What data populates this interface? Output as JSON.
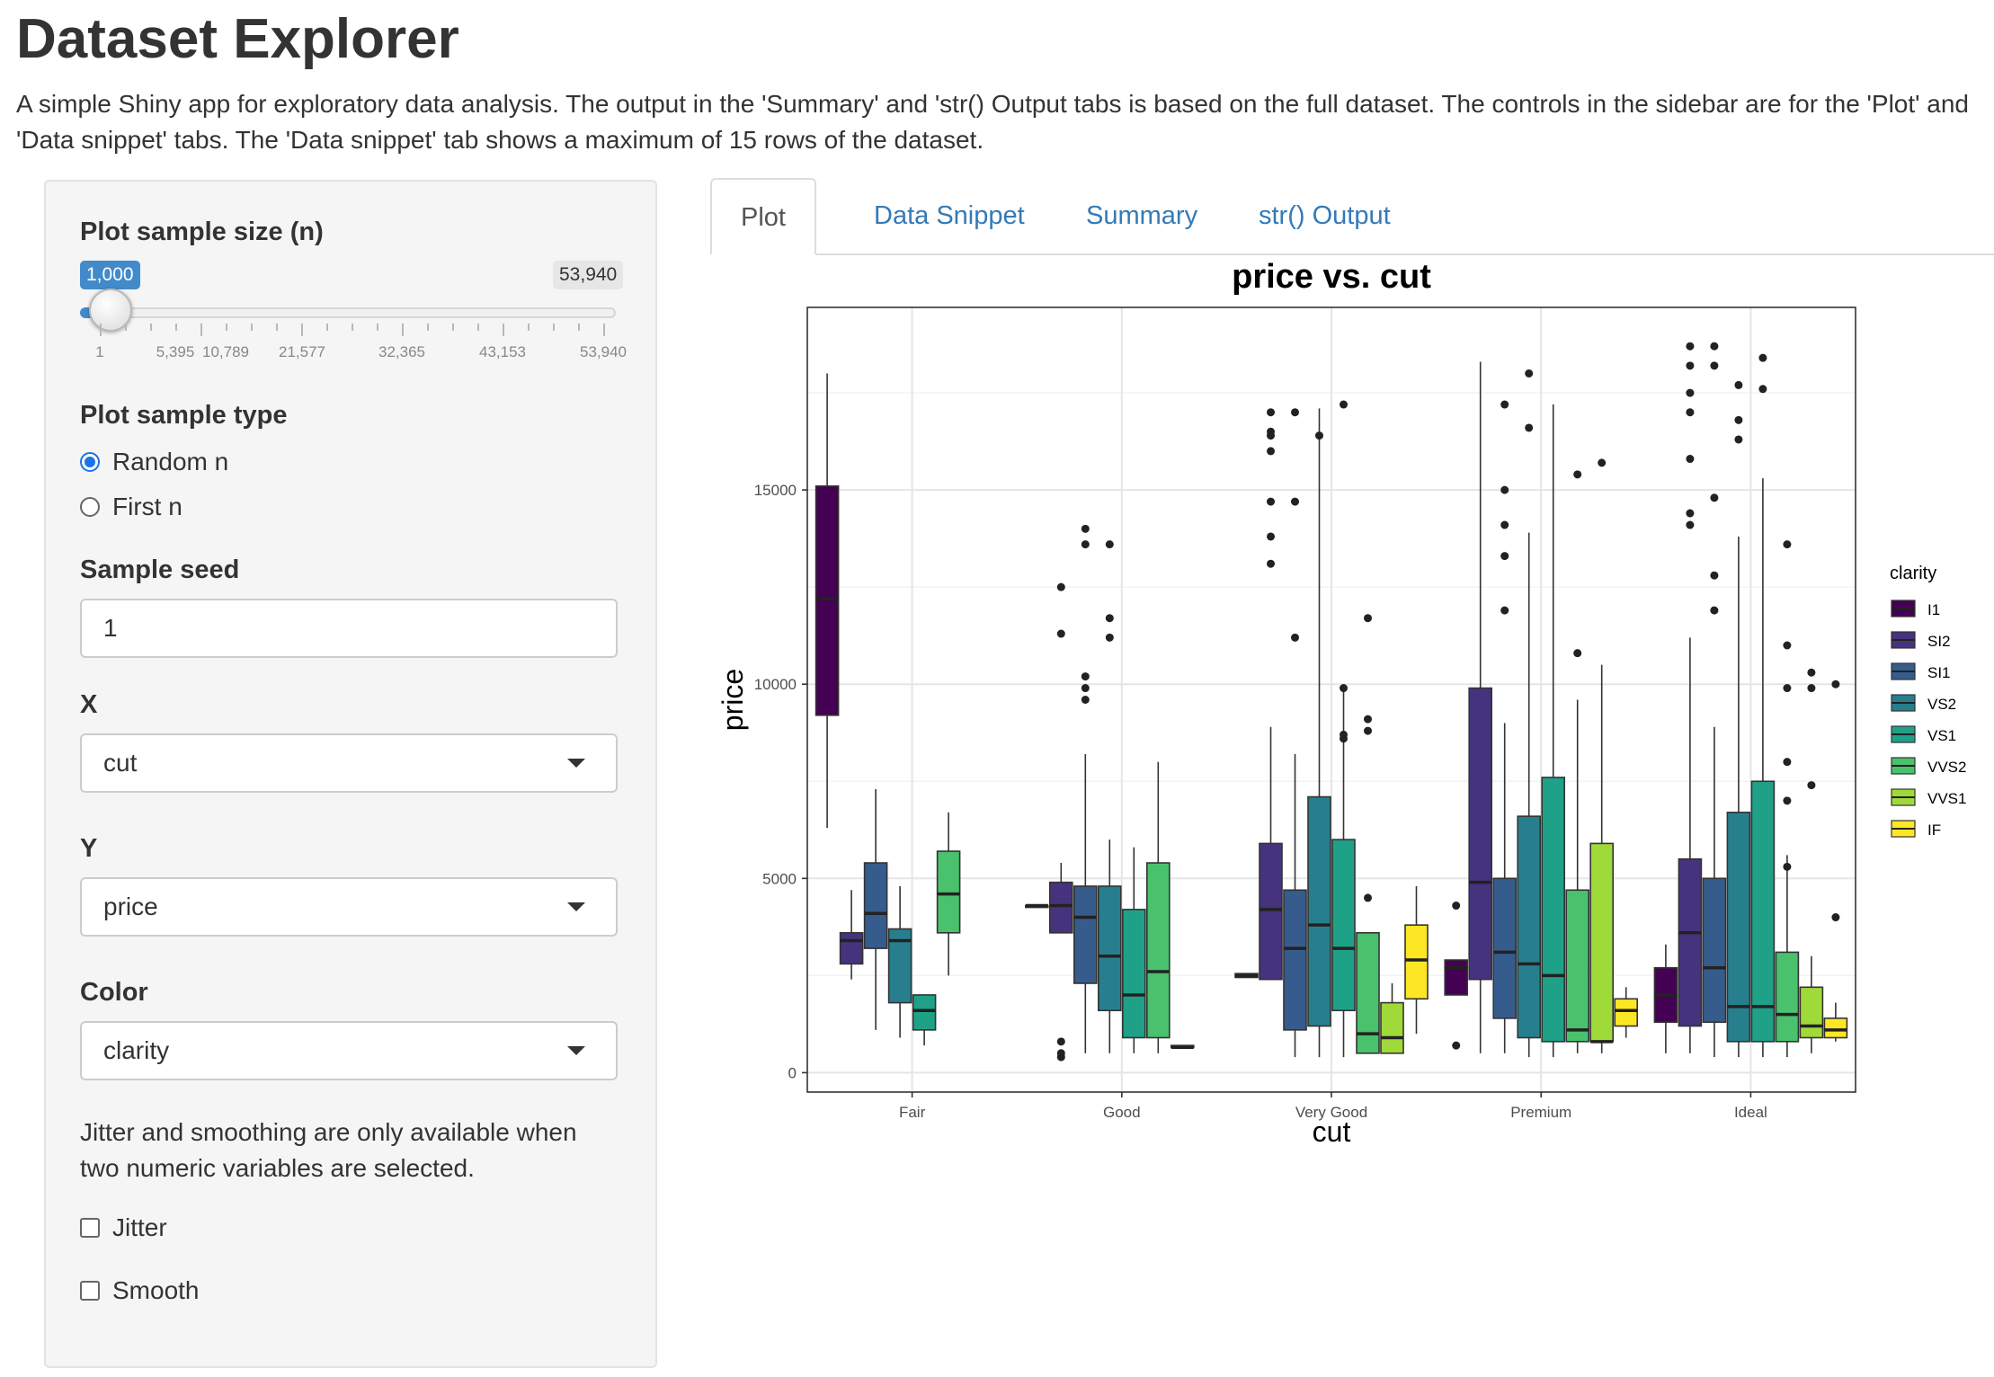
{
  "app": {
    "title": "Dataset Explorer",
    "description": "A simple Shiny app for exploratory data analysis. The output in the 'Summary' and 'str() Output tabs is based on the full dataset. The controls in the sidebar are for the 'Plot' and 'Data snippet' tabs. The 'Data snippet' tab shows a maximum of 15 rows of the dataset."
  },
  "sidebar": {
    "sample_size": {
      "label": "Plot sample size (n)",
      "value": "1,000",
      "max_label": "53,940",
      "ticks": [
        "1",
        "5,395",
        "10,789",
        "21,577",
        "32,365",
        "43,153",
        "53,940"
      ]
    },
    "sample_type": {
      "label": "Plot sample type",
      "options": [
        "Random n",
        "First n"
      ],
      "selected": "Random n"
    },
    "seed": {
      "label": "Sample seed",
      "value": "1"
    },
    "x": {
      "label": "X",
      "value": "cut"
    },
    "y": {
      "label": "Y",
      "value": "price"
    },
    "color": {
      "label": "Color",
      "value": "clarity"
    },
    "help_text": "Jitter and smoothing are only available when two numeric variables are selected.",
    "jitter": {
      "label": "Jitter",
      "checked": false
    },
    "smooth": {
      "label": "Smooth",
      "checked": false
    }
  },
  "tabs": [
    {
      "label": "Plot",
      "active": true
    },
    {
      "label": "Data Snippet",
      "active": false
    },
    {
      "label": "Summary",
      "active": false
    },
    {
      "label": "str() Output",
      "active": false
    }
  ],
  "chart_data": {
    "type": "boxplot",
    "title": "price vs. cut",
    "xlabel": "cut",
    "ylabel": "price",
    "ylim": [
      -500,
      19700
    ],
    "yticks": [
      0,
      5000,
      10000,
      15000
    ],
    "categories": [
      "Fair",
      "Good",
      "Very Good",
      "Premium",
      "Ideal"
    ],
    "legend": {
      "title": "clarity",
      "position": "right"
    },
    "grid": true,
    "series": [
      {
        "name": "I1",
        "color": "#440154",
        "boxes": [
          {
            "cat": "Fair",
            "min": 6300,
            "q1": 9200,
            "median": 12200,
            "q3": 15100,
            "max": 18000,
            "outliers": []
          },
          {
            "cat": "Good",
            "min": 4300,
            "q1": 4300,
            "median": 4300,
            "q3": 4300,
            "max": 4300,
            "outliers": []
          },
          {
            "cat": "Very Good",
            "min": 2450,
            "q1": 2450,
            "median": 2500,
            "q3": 2550,
            "max": 2550,
            "outliers": []
          },
          {
            "cat": "Premium",
            "min": 2000,
            "q1": 2000,
            "median": 2700,
            "q3": 2900,
            "max": 2900,
            "outliers": [
              700,
              4300
            ]
          },
          {
            "cat": "Ideal",
            "min": 500,
            "q1": 1300,
            "median": 2000,
            "q3": 2700,
            "max": 3300,
            "outliers": []
          }
        ]
      },
      {
        "name": "SI2",
        "color": "#46337e",
        "boxes": [
          {
            "cat": "Fair",
            "min": 2400,
            "q1": 2800,
            "median": 3400,
            "q3": 3600,
            "max": 4700,
            "outliers": []
          },
          {
            "cat": "Good",
            "min": 3600,
            "q1": 3600,
            "median": 4300,
            "q3": 4900,
            "max": 5400,
            "outliers": [
              12500,
              11300,
              800,
              400,
              500
            ]
          },
          {
            "cat": "Very Good",
            "min": 2400,
            "q1": 2400,
            "median": 4200,
            "q3": 5900,
            "max": 8900,
            "outliers": [
              16000,
              16500,
              17000,
              14700,
              13800,
              13100,
              16400
            ]
          },
          {
            "cat": "Premium",
            "min": 500,
            "q1": 2400,
            "median": 4900,
            "q3": 9900,
            "max": 18300,
            "outliers": []
          },
          {
            "cat": "Ideal",
            "min": 500,
            "q1": 1200,
            "median": 3600,
            "q3": 5500,
            "max": 11200,
            "outliers": [
              18700,
              18200,
              17500,
              17000,
              15800,
              14400,
              14100
            ]
          }
        ]
      },
      {
        "name": "SI1",
        "color": "#365c8d",
        "boxes": [
          {
            "cat": "Fair",
            "min": 1100,
            "q1": 3200,
            "median": 4100,
            "q3": 5400,
            "max": 7300,
            "outliers": []
          },
          {
            "cat": "Good",
            "min": 500,
            "q1": 2300,
            "median": 4000,
            "q3": 4800,
            "max": 8200,
            "outliers": [
              14000,
              13600,
              10200,
              9900,
              9600
            ]
          },
          {
            "cat": "Very Good",
            "min": 400,
            "q1": 1100,
            "median": 3200,
            "q3": 4700,
            "max": 8200,
            "outliers": [
              17000,
              14700,
              11200
            ]
          },
          {
            "cat": "Premium",
            "min": 500,
            "q1": 1400,
            "median": 3100,
            "q3": 5000,
            "max": 9000,
            "outliers": [
              17200,
              15000,
              14100,
              13300,
              11900
            ]
          },
          {
            "cat": "Ideal",
            "min": 400,
            "q1": 1300,
            "median": 2700,
            "q3": 5000,
            "max": 8900,
            "outliers": [
              18700,
              18200,
              14800,
              12800,
              11900
            ]
          }
        ]
      },
      {
        "name": "VS2",
        "color": "#277f8e",
        "boxes": [
          {
            "cat": "Fair",
            "min": 900,
            "q1": 1800,
            "median": 3400,
            "q3": 3700,
            "max": 4800,
            "outliers": []
          },
          {
            "cat": "Good",
            "min": 500,
            "q1": 1600,
            "median": 3000,
            "q3": 4800,
            "max": 6000,
            "outliers": [
              13600,
              11700,
              11200
            ]
          },
          {
            "cat": "Very Good",
            "min": 400,
            "q1": 1200,
            "median": 3800,
            "q3": 7100,
            "max": 17100,
            "outliers": [
              16400
            ]
          },
          {
            "cat": "Premium",
            "min": 400,
            "q1": 900,
            "median": 2800,
            "q3": 6600,
            "max": 13900,
            "outliers": [
              18000,
              16600
            ]
          },
          {
            "cat": "Ideal",
            "min": 400,
            "q1": 800,
            "median": 1700,
            "q3": 6700,
            "max": 13800,
            "outliers": [
              17700,
              16800,
              16300
            ]
          }
        ]
      },
      {
        "name": "VS1",
        "color": "#1fa187",
        "boxes": [
          {
            "cat": "Fair",
            "min": 700,
            "q1": 1100,
            "median": 1600,
            "q3": 2000,
            "max": 2000,
            "outliers": []
          },
          {
            "cat": "Good",
            "min": 500,
            "q1": 900,
            "median": 2000,
            "q3": 4200,
            "max": 5800,
            "outliers": []
          },
          {
            "cat": "Very Good",
            "min": 400,
            "q1": 1600,
            "median": 3200,
            "q3": 6000,
            "max": 10000,
            "outliers": [
              17200,
              8600,
              8700,
              9900
            ]
          },
          {
            "cat": "Premium",
            "min": 400,
            "q1": 800,
            "median": 2500,
            "q3": 7600,
            "max": 17200,
            "outliers": []
          },
          {
            "cat": "Ideal",
            "min": 400,
            "q1": 800,
            "median": 1700,
            "q3": 7500,
            "max": 15300,
            "outliers": [
              18400,
              17600
            ]
          }
        ]
      },
      {
        "name": "VVS2",
        "color": "#4ac16d",
        "boxes": [
          {
            "cat": "Fair",
            "min": 2500,
            "q1": 3600,
            "median": 4600,
            "q3": 5700,
            "max": 6700,
            "outliers": []
          },
          {
            "cat": "Good",
            "min": 500,
            "q1": 900,
            "median": 2600,
            "q3": 5400,
            "max": 8000,
            "outliers": []
          },
          {
            "cat": "Very Good",
            "min": 500,
            "q1": 500,
            "median": 1000,
            "q3": 3600,
            "max": 3600,
            "outliers": [
              4500,
              8800,
              9100,
              11700
            ]
          },
          {
            "cat": "Premium",
            "min": 500,
            "q1": 800,
            "median": 1100,
            "q3": 4700,
            "max": 9600,
            "outliers": [
              10800,
              15400
            ]
          },
          {
            "cat": "Ideal",
            "min": 400,
            "q1": 800,
            "median": 1500,
            "q3": 3100,
            "max": 5600,
            "outliers": [
              13600,
              11000,
              9900,
              8000,
              7000,
              5300
            ]
          }
        ]
      },
      {
        "name": "VVS1",
        "color": "#a0da39",
        "boxes": [
          {
            "cat": "Fair",
            "min": null,
            "q1": null,
            "median": null,
            "q3": null,
            "max": null,
            "outliers": []
          },
          {
            "cat": "Good",
            "min": 650,
            "q1": 650,
            "median": 650,
            "q3": 700,
            "max": 700,
            "outliers": []
          },
          {
            "cat": "Very Good",
            "min": 500,
            "q1": 500,
            "median": 900,
            "q3": 1800,
            "max": 2300,
            "outliers": []
          },
          {
            "cat": "Premium",
            "min": 500,
            "q1": 800,
            "median": 800,
            "q3": 5900,
            "max": 10500,
            "outliers": [
              15700
            ]
          },
          {
            "cat": "Ideal",
            "min": 500,
            "q1": 900,
            "median": 1200,
            "q3": 2200,
            "max": 3000,
            "outliers": [
              10300,
              9900,
              7400
            ]
          }
        ]
      },
      {
        "name": "IF",
        "color": "#fde725",
        "boxes": [
          {
            "cat": "Fair",
            "min": null,
            "q1": null,
            "median": null,
            "q3": null,
            "max": null,
            "outliers": []
          },
          {
            "cat": "Good",
            "min": null,
            "q1": null,
            "median": null,
            "q3": null,
            "max": null,
            "outliers": []
          },
          {
            "cat": "Very Good",
            "min": 1000,
            "q1": 1900,
            "median": 2900,
            "q3": 3800,
            "max": 4800,
            "outliers": []
          },
          {
            "cat": "Premium",
            "min": 900,
            "q1": 1200,
            "median": 1600,
            "q3": 1900,
            "max": 2200,
            "outliers": []
          },
          {
            "cat": "Ideal",
            "min": 800,
            "q1": 900,
            "median": 1100,
            "q3": 1400,
            "max": 1800,
            "outliers": [
              10000,
              4000
            ]
          }
        ]
      }
    ]
  }
}
